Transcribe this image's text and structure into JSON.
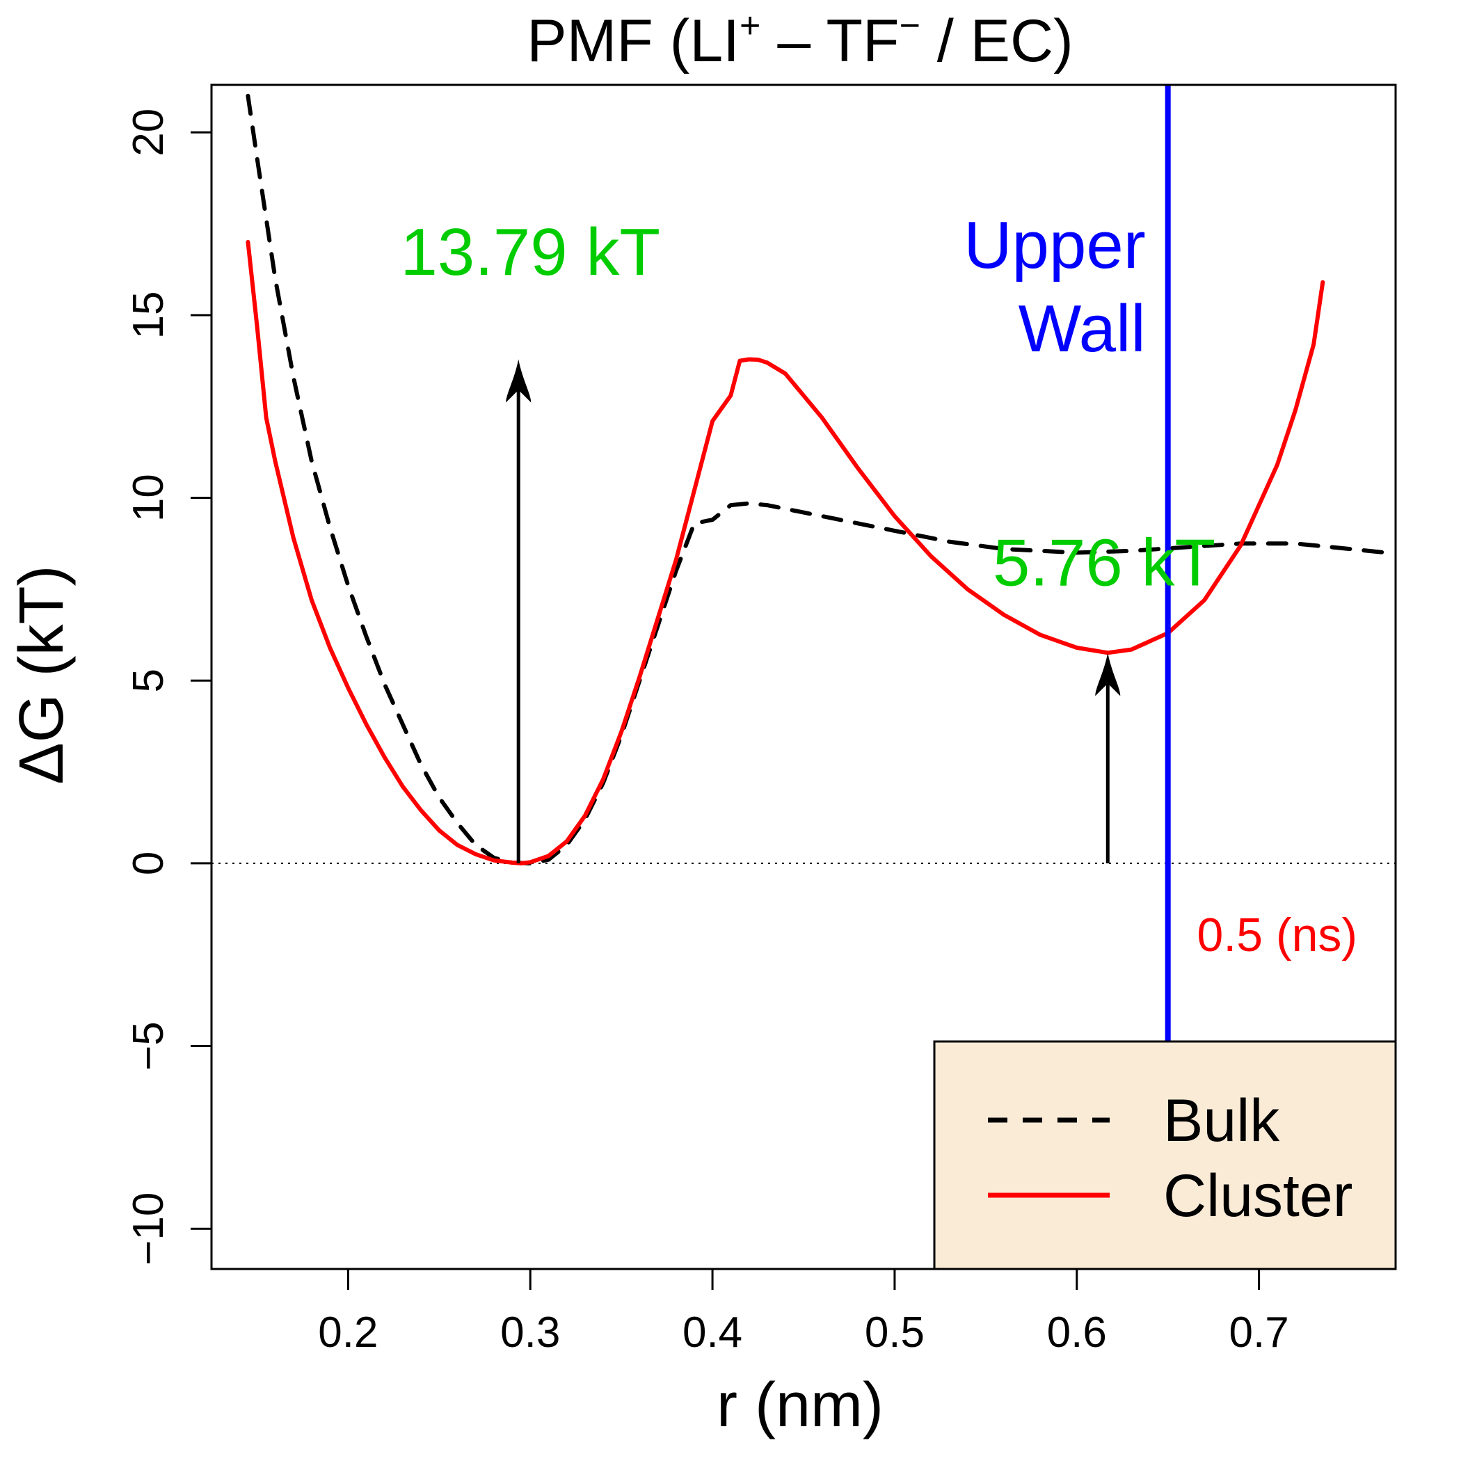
{
  "chart_data": {
    "type": "line",
    "title": {
      "prefix": "PMF (LI",
      "sup1": "+",
      "mid": " – TF",
      "sup2": "−",
      "suffix": " / EC)"
    },
    "xlabel": "r (nm)",
    "ylabel": "ΔG (kT)",
    "xlim": [
      0.125,
      0.775
    ],
    "ylim": [
      -11.1,
      21.3
    ],
    "x_ticks": [
      0.2,
      0.3,
      0.4,
      0.5,
      0.6,
      0.7
    ],
    "x_tick_labels": [
      "0.2",
      "0.3",
      "0.4",
      "0.5",
      "0.6",
      "0.7"
    ],
    "y_ticks": [
      -10,
      -5,
      0,
      5,
      10,
      15,
      20
    ],
    "y_tick_labels": [
      "−10",
      "−5",
      "0",
      "5",
      "10",
      "15",
      "20"
    ],
    "grid": false,
    "reference_line_y": 0,
    "series": [
      {
        "name": "Bulk",
        "color": "#000000",
        "style": "dashed",
        "x": [
          0.145,
          0.15,
          0.16,
          0.17,
          0.18,
          0.19,
          0.2,
          0.21,
          0.22,
          0.23,
          0.24,
          0.25,
          0.26,
          0.27,
          0.28,
          0.29,
          0.3,
          0.31,
          0.32,
          0.33,
          0.34,
          0.35,
          0.36,
          0.37,
          0.38,
          0.39,
          0.4,
          0.41,
          0.42,
          0.43,
          0.45,
          0.48,
          0.5,
          0.53,
          0.56,
          0.6,
          0.63,
          0.66,
          0.69,
          0.72,
          0.75,
          0.77
        ],
        "y": [
          21.0,
          19.3,
          16.0,
          13.3,
          11.0,
          9.2,
          7.6,
          6.2,
          4.9,
          3.8,
          2.7,
          1.8,
          1.1,
          0.5,
          0.15,
          0.02,
          0.0,
          0.1,
          0.5,
          1.2,
          2.2,
          3.5,
          5.0,
          6.5,
          8.0,
          9.3,
          9.4,
          9.8,
          9.85,
          9.8,
          9.6,
          9.3,
          9.1,
          8.8,
          8.6,
          8.5,
          8.55,
          8.65,
          8.75,
          8.75,
          8.6,
          8.5
        ]
      },
      {
        "name": "Cluster",
        "color": "#ff0000",
        "style": "solid",
        "x": [
          0.145,
          0.15,
          0.155,
          0.16,
          0.17,
          0.18,
          0.19,
          0.2,
          0.21,
          0.22,
          0.23,
          0.24,
          0.25,
          0.26,
          0.27,
          0.28,
          0.29,
          0.295,
          0.3,
          0.31,
          0.32,
          0.33,
          0.34,
          0.35,
          0.36,
          0.37,
          0.38,
          0.39,
          0.4,
          0.41,
          0.415,
          0.42,
          0.425,
          0.43,
          0.44,
          0.45,
          0.46,
          0.48,
          0.5,
          0.52,
          0.54,
          0.56,
          0.58,
          0.6,
          0.617,
          0.63,
          0.65,
          0.67,
          0.69,
          0.71,
          0.72,
          0.73,
          0.735
        ],
        "y": [
          17.0,
          14.7,
          12.2,
          11.0,
          8.9,
          7.2,
          5.9,
          4.8,
          3.8,
          2.9,
          2.1,
          1.45,
          0.9,
          0.5,
          0.25,
          0.08,
          0.02,
          0.0,
          0.03,
          0.2,
          0.6,
          1.3,
          2.3,
          3.6,
          5.1,
          6.7,
          8.3,
          10.2,
          12.1,
          12.8,
          13.75,
          13.79,
          13.78,
          13.7,
          13.4,
          12.8,
          12.2,
          10.8,
          9.5,
          8.4,
          7.5,
          6.8,
          6.25,
          5.9,
          5.76,
          5.85,
          6.3,
          7.2,
          8.7,
          10.9,
          12.4,
          14.2,
          15.9
        ]
      }
    ],
    "vertical_line": {
      "x": 0.65,
      "color": "#0000ff",
      "label_line1": "Upper",
      "label_line2": "Wall"
    },
    "annotations": [
      {
        "text": "13.79 kT",
        "color": "#00cc00",
        "x": 0.3,
        "y": 16.1
      },
      {
        "text": "5.76 kT",
        "color": "#00cc00",
        "x": 0.615,
        "y": 7.6
      },
      {
        "text": "0.5 (ns)",
        "color": "#ff0000",
        "x": 0.71,
        "y": -2.4
      }
    ],
    "arrows": [
      {
        "x": 0.2935,
        "y_from": 0.0,
        "y_to": 13.79
      },
      {
        "x": 0.617,
        "y_from": 0.0,
        "y_to": 5.76
      }
    ],
    "legend": {
      "position": "bottom-right",
      "background": "#faebd7",
      "entries": [
        {
          "label": "Bulk",
          "color": "#000000",
          "style": "dashed"
        },
        {
          "label": "Cluster",
          "color": "#ff0000",
          "style": "solid"
        }
      ]
    }
  }
}
